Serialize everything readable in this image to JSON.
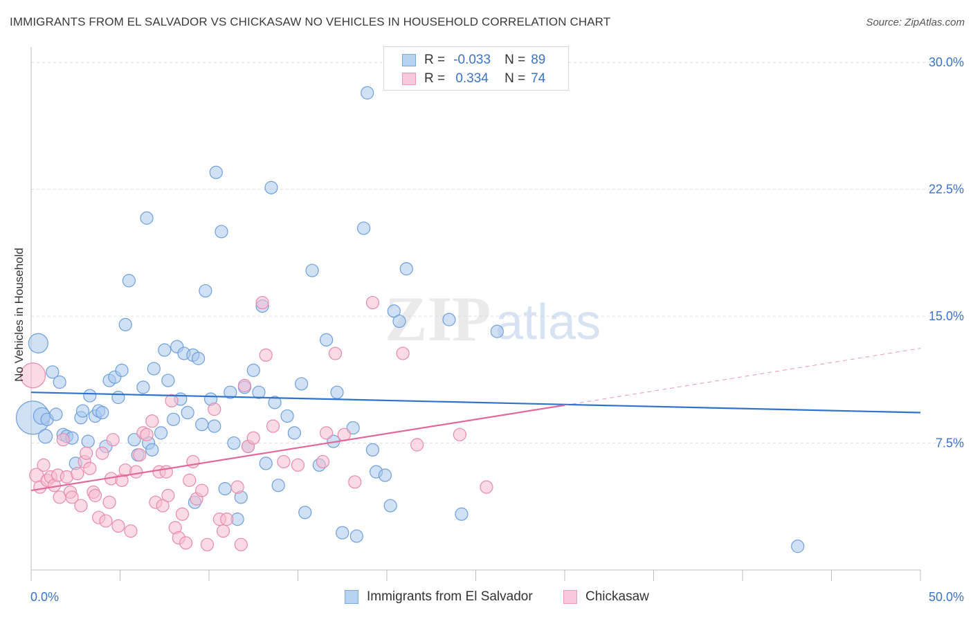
{
  "header": {
    "title": "IMMIGRANTS FROM EL SALVADOR VS CHICKASAW NO VEHICLES IN HOUSEHOLD CORRELATION CHART",
    "source": "Source: ZipAtlas.com"
  },
  "legend": {
    "series": [
      {
        "r_label": "R =",
        "r_value": "-0.033",
        "n_label": "N =",
        "n_value": "89"
      },
      {
        "r_label": "R =",
        "r_value": "0.334",
        "n_label": "N =",
        "n_value": "74"
      }
    ]
  },
  "colors": {
    "blue_fill": "#a9c8ef",
    "blue_stroke": "#6d9fdc",
    "blue_line": "#2f72cc",
    "pink_fill": "#f6bcd0",
    "pink_stroke": "#e98aab",
    "pink_line": "#e2689a",
    "tick_label": "#3b73c8",
    "grid": "#dddddd"
  },
  "chart_data": {
    "type": "scatter",
    "xlabel": "",
    "ylabel": "No Vehicles in Household",
    "xlim": [
      0,
      50
    ],
    "ylim": [
      0,
      30.5
    ],
    "x_tick_labels": [
      {
        "value": 0,
        "label": "0.0%"
      },
      {
        "value": 50,
        "label": "50.0%"
      }
    ],
    "y_tick_labels": [
      {
        "value": 7.5,
        "label": "7.5%"
      },
      {
        "value": 15,
        "label": "15.0%"
      },
      {
        "value": 22.5,
        "label": "22.5%"
      },
      {
        "value": 30,
        "label": "30.0%"
      }
    ],
    "grid": true,
    "legend_position": "bottom-center",
    "watermark": "ZIPatlas",
    "series": [
      {
        "name": "Immigrants from El Salvador",
        "color": "#a9c8ef",
        "trend": {
          "x": [
            0,
            50
          ],
          "y": [
            10.5,
            9.3
          ],
          "dashed_from": null
        },
        "points": [
          [
            0.1,
            9.0,
            24
          ],
          [
            0.4,
            13.4,
            14
          ],
          [
            0.6,
            9.1,
            12
          ],
          [
            0.8,
            7.9,
            10
          ],
          [
            0.9,
            8.9,
            9
          ],
          [
            1.2,
            11.7,
            9
          ],
          [
            1.4,
            9.2,
            9
          ],
          [
            1.6,
            11.1,
            9
          ],
          [
            1.8,
            8.0,
            9
          ],
          [
            2.0,
            7.9,
            9
          ],
          [
            2.3,
            7.8,
            9
          ],
          [
            2.5,
            6.3,
            9
          ],
          [
            2.8,
            9.0,
            9
          ],
          [
            2.9,
            9.4,
            9
          ],
          [
            3.2,
            7.6,
            9
          ],
          [
            3.3,
            10.3,
            9
          ],
          [
            3.6,
            9.1,
            9
          ],
          [
            3.8,
            9.4,
            9
          ],
          [
            4.0,
            9.3,
            9
          ],
          [
            4.2,
            7.3,
            9
          ],
          [
            4.4,
            11.2,
            9
          ],
          [
            4.7,
            11.4,
            9
          ],
          [
            4.9,
            10.2,
            9
          ],
          [
            5.1,
            11.8,
            9
          ],
          [
            5.3,
            14.5,
            9
          ],
          [
            5.5,
            17.1,
            9
          ],
          [
            5.8,
            7.7,
            9
          ],
          [
            6.0,
            6.8,
            9
          ],
          [
            6.3,
            10.8,
            9
          ],
          [
            6.5,
            20.8,
            9
          ],
          [
            6.6,
            7.5,
            9
          ],
          [
            6.8,
            7.1,
            9
          ],
          [
            6.9,
            11.9,
            9
          ],
          [
            7.3,
            8.1,
            9
          ],
          [
            7.5,
            13.0,
            9
          ],
          [
            7.7,
            11.2,
            9
          ],
          [
            8.0,
            8.9,
            9
          ],
          [
            8.2,
            13.2,
            9
          ],
          [
            8.4,
            10.1,
            9
          ],
          [
            8.6,
            12.8,
            9
          ],
          [
            8.8,
            9.3,
            9
          ],
          [
            9.1,
            12.7,
            9
          ],
          [
            9.2,
            4.0,
            9
          ],
          [
            9.4,
            12.5,
            9
          ],
          [
            9.6,
            8.6,
            9
          ],
          [
            9.8,
            16.5,
            9
          ],
          [
            10.1,
            10.1,
            9
          ],
          [
            10.3,
            8.5,
            9
          ],
          [
            10.4,
            23.5,
            9
          ],
          [
            10.7,
            20.0,
            9
          ],
          [
            10.9,
            4.8,
            9
          ],
          [
            11.2,
            10.5,
            9
          ],
          [
            11.4,
            7.5,
            9
          ],
          [
            11.6,
            3.0,
            9
          ],
          [
            11.8,
            4.3,
            9
          ],
          [
            12.0,
            10.8,
            9
          ],
          [
            12.2,
            7.3,
            9
          ],
          [
            12.5,
            11.8,
            9
          ],
          [
            12.8,
            10.5,
            9
          ],
          [
            13.0,
            15.6,
            9
          ],
          [
            13.2,
            6.3,
            9
          ],
          [
            13.5,
            22.6,
            9
          ],
          [
            13.7,
            9.9,
            9
          ],
          [
            13.9,
            5.0,
            9
          ],
          [
            14.4,
            9.1,
            9
          ],
          [
            14.8,
            8.1,
            9
          ],
          [
            15.2,
            11.0,
            9
          ],
          [
            15.4,
            3.4,
            9
          ],
          [
            15.8,
            17.7,
            9
          ],
          [
            16.2,
            6.2,
            9
          ],
          [
            16.6,
            13.6,
            9
          ],
          [
            17.0,
            7.6,
            9
          ],
          [
            17.2,
            10.5,
            9
          ],
          [
            17.5,
            2.2,
            9
          ],
          [
            18.1,
            8.4,
            9
          ],
          [
            18.3,
            2.0,
            9
          ],
          [
            18.7,
            20.2,
            9
          ],
          [
            18.9,
            28.2,
            9
          ],
          [
            19.2,
            7.1,
            9
          ],
          [
            19.4,
            5.8,
            9
          ],
          [
            19.9,
            5.6,
            9
          ],
          [
            20.2,
            3.8,
            9
          ],
          [
            20.4,
            15.3,
            9
          ],
          [
            20.7,
            14.7,
            9
          ],
          [
            21.1,
            17.8,
            9
          ],
          [
            23.5,
            14.8,
            9
          ],
          [
            24.2,
            3.3,
            9
          ],
          [
            26.2,
            14.1,
            9
          ],
          [
            43.1,
            1.4,
            9
          ]
        ]
      },
      {
        "name": "Chickasaw",
        "color": "#f6bcd0",
        "trend": {
          "x": [
            0,
            50
          ],
          "y": [
            4.7,
            13.1
          ],
          "solid_until": 30
        },
        "points": [
          [
            0.1,
            11.5,
            18
          ],
          [
            0.3,
            5.6,
            10
          ],
          [
            0.5,
            4.9,
            9
          ],
          [
            0.7,
            6.2,
            9
          ],
          [
            0.9,
            5.3,
            9
          ],
          [
            1.1,
            5.5,
            9
          ],
          [
            1.3,
            5.0,
            9
          ],
          [
            1.5,
            5.6,
            9
          ],
          [
            1.6,
            4.3,
            9
          ],
          [
            1.8,
            7.7,
            9
          ],
          [
            2.0,
            5.5,
            9
          ],
          [
            2.2,
            4.6,
            9
          ],
          [
            2.3,
            4.3,
            9
          ],
          [
            2.6,
            5.7,
            9
          ],
          [
            2.8,
            3.8,
            9
          ],
          [
            3.0,
            6.4,
            9
          ],
          [
            3.1,
            6.9,
            9
          ],
          [
            3.3,
            6.0,
            9
          ],
          [
            3.5,
            4.6,
            9
          ],
          [
            3.6,
            4.4,
            9
          ],
          [
            3.8,
            3.1,
            9
          ],
          [
            4.0,
            6.9,
            9
          ],
          [
            4.2,
            2.9,
            9
          ],
          [
            4.4,
            4.0,
            9
          ],
          [
            4.5,
            5.4,
            9
          ],
          [
            4.6,
            7.7,
            9
          ],
          [
            4.9,
            2.6,
            9
          ],
          [
            5.1,
            5.3,
            9
          ],
          [
            5.3,
            5.9,
            9
          ],
          [
            5.6,
            2.3,
            9
          ],
          [
            5.9,
            5.8,
            9
          ],
          [
            6.1,
            6.8,
            9
          ],
          [
            6.3,
            8.1,
            9
          ],
          [
            6.5,
            8.0,
            9
          ],
          [
            6.8,
            8.8,
            9
          ],
          [
            7.0,
            4.0,
            9
          ],
          [
            7.2,
            5.8,
            9
          ],
          [
            7.4,
            3.8,
            9
          ],
          [
            7.6,
            5.8,
            9
          ],
          [
            7.7,
            4.4,
            9
          ],
          [
            7.9,
            10.0,
            9
          ],
          [
            8.1,
            2.5,
            9
          ],
          [
            8.3,
            1.9,
            9
          ],
          [
            8.5,
            3.3,
            9
          ],
          [
            8.7,
            1.6,
            9
          ],
          [
            8.9,
            5.3,
            9
          ],
          [
            9.1,
            6.4,
            9
          ],
          [
            9.3,
            4.2,
            9
          ],
          [
            9.6,
            4.7,
            9
          ],
          [
            9.9,
            1.5,
            9
          ],
          [
            10.3,
            9.5,
            9
          ],
          [
            10.6,
            3.0,
            9
          ],
          [
            10.8,
            2.3,
            9
          ],
          [
            11.0,
            3.0,
            9
          ],
          [
            11.6,
            4.9,
            9
          ],
          [
            11.8,
            1.5,
            9
          ],
          [
            12.0,
            10.9,
            9
          ],
          [
            12.2,
            7.3,
            9
          ],
          [
            12.5,
            7.8,
            9
          ],
          [
            13.0,
            15.8,
            9
          ],
          [
            13.2,
            12.7,
            9
          ],
          [
            13.6,
            8.5,
            9
          ],
          [
            14.2,
            6.4,
            9
          ],
          [
            15.0,
            6.2,
            9
          ],
          [
            16.4,
            6.4,
            9
          ],
          [
            16.6,
            8.1,
            9
          ],
          [
            17.1,
            12.8,
            9
          ],
          [
            17.6,
            8.0,
            9
          ],
          [
            18.2,
            5.2,
            9
          ],
          [
            19.2,
            15.8,
            9
          ],
          [
            20.9,
            12.8,
            9
          ],
          [
            21.7,
            7.4,
            9
          ],
          [
            24.1,
            8.0,
            9
          ],
          [
            25.6,
            4.9,
            9
          ]
        ]
      }
    ]
  }
}
